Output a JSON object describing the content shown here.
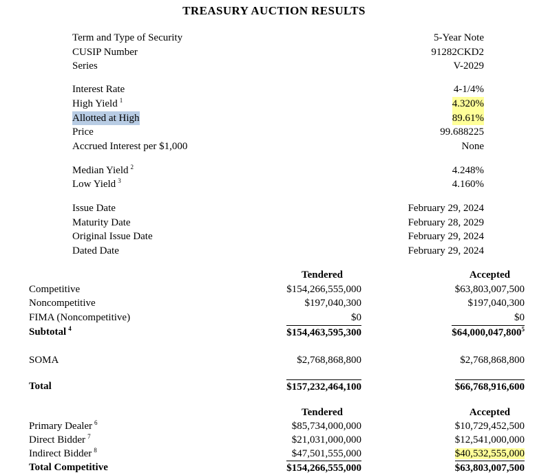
{
  "title": "TREASURY AUCTION RESULTS",
  "colors": {
    "highlight_yellow": "#ffff99",
    "highlight_blue": "#b8cce4"
  },
  "security": {
    "rows": [
      {
        "label": "Term and Type of Security",
        "value": "5-Year Note"
      },
      {
        "label": "CUSIP Number",
        "value": "91282CKD2"
      },
      {
        "label": "Series",
        "value": "V-2029"
      }
    ]
  },
  "rates": {
    "rows": [
      {
        "label": "Interest Rate",
        "value": "4-1/4%"
      },
      {
        "label": "High Yield",
        "sup": "1",
        "value": "4.320%"
      },
      {
        "label": "Allotted at High",
        "value": "89.61%"
      },
      {
        "label": "Price",
        "value": "99.688225"
      },
      {
        "label": "Accrued Interest per $1,000",
        "value": "None"
      }
    ]
  },
  "yields": {
    "rows": [
      {
        "label": "Median Yield",
        "sup": "2",
        "value": "4.248%"
      },
      {
        "label": "Low Yield",
        "sup": "3",
        "value": "4.160%"
      }
    ]
  },
  "dates": {
    "rows": [
      {
        "label": "Issue Date",
        "value": "February 29, 2024"
      },
      {
        "label": "Maturity Date",
        "value": "February 28, 2029"
      },
      {
        "label": "Original Issue Date",
        "value": "February 29, 2024"
      },
      {
        "label": "Dated Date",
        "value": "February 29, 2024"
      }
    ]
  },
  "alloc": {
    "headers": {
      "tendered": "Tendered",
      "accepted": "Accepted"
    },
    "rows": [
      {
        "label": "Competitive",
        "tendered": "$154,266,555,000",
        "accepted": "$63,803,007,500"
      },
      {
        "label": "Noncompetitive",
        "tendered": "$197,040,300",
        "accepted": "$197,040,300"
      },
      {
        "label": "FIMA (Noncompetitive)",
        "tendered": "$0",
        "accepted": "$0"
      },
      {
        "label": "Subtotal",
        "sup": "4",
        "tendered": "$154,463,595,300",
        "accepted": "$64,000,047,800",
        "accepted_sup": "5"
      }
    ],
    "soma": {
      "label": "SOMA",
      "tendered": "$2,768,868,800",
      "accepted": "$2,768,868,800"
    },
    "total": {
      "label": "Total",
      "tendered": "$157,232,464,100",
      "accepted": "$66,768,916,600"
    }
  },
  "bidders": {
    "headers": {
      "tendered": "Tendered",
      "accepted": "Accepted"
    },
    "rows": [
      {
        "label": "Primary Dealer",
        "sup": "6",
        "tendered": "$85,734,000,000",
        "accepted": "$10,729,452,500"
      },
      {
        "label": "Direct Bidder",
        "sup": "7",
        "tendered": "$21,031,000,000",
        "accepted": "$12,541,000,000"
      },
      {
        "label": "Indirect Bidder",
        "sup": "8",
        "tendered": "$47,501,555,000",
        "accepted": "$40,532,555,000"
      }
    ],
    "total": {
      "label": "Total Competitive",
      "tendered": "$154,266,555,000",
      "accepted": "$63,803,007,500"
    }
  }
}
